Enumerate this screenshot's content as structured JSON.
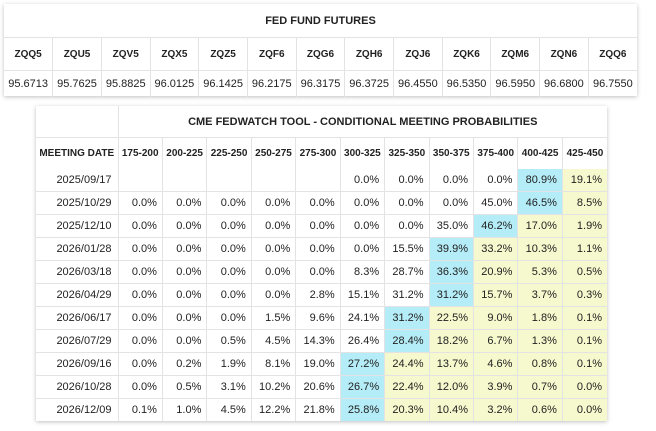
{
  "futures": {
    "title": "FED FUND FUTURES",
    "symbols": [
      "ZQQ5",
      "ZQU5",
      "ZQV5",
      "ZQX5",
      "ZQZ5",
      "ZQF6",
      "ZQG6",
      "ZQH6",
      "ZQJ6",
      "ZQK6",
      "ZQM6",
      "ZQN6",
      "ZQQ6"
    ],
    "prices": [
      "95.6713",
      "95.7625",
      "95.8825",
      "96.0125",
      "96.1425",
      "96.2175",
      "96.3175",
      "96.3725",
      "96.4550",
      "96.5350",
      "96.5950",
      "96.6800",
      "96.7550"
    ]
  },
  "fedwatch": {
    "title": "CME FEDWATCH TOOL - CONDITIONAL MEETING PROBABILITIES",
    "date_header": "MEETING DATE",
    "ranges": [
      "175-200",
      "200-225",
      "225-250",
      "250-275",
      "275-300",
      "300-325",
      "325-350",
      "350-375",
      "375-400",
      "400-425",
      "425-450"
    ],
    "colors": {
      "highest": "#b4ecf7",
      "upper": "#f6f8cd",
      "border": "#e3e3e3"
    },
    "rows": [
      {
        "date": "2025/09/17",
        "cells": [
          "",
          "",
          "",
          "",
          "",
          "0.0%",
          "0.0%",
          "0.0%",
          "0.0%",
          "80.9%",
          "19.1%"
        ],
        "hl": [
          "",
          "",
          "",
          "",
          "",
          "",
          "",
          "",
          "",
          "c",
          "y"
        ]
      },
      {
        "date": "2025/10/29",
        "cells": [
          "0.0%",
          "0.0%",
          "0.0%",
          "0.0%",
          "0.0%",
          "0.0%",
          "0.0%",
          "0.0%",
          "45.0%",
          "46.5%",
          "8.5%"
        ],
        "hl": [
          "",
          "",
          "",
          "",
          "",
          "",
          "",
          "",
          "",
          "c",
          "y"
        ]
      },
      {
        "date": "2025/12/10",
        "cells": [
          "0.0%",
          "0.0%",
          "0.0%",
          "0.0%",
          "0.0%",
          "0.0%",
          "0.0%",
          "35.0%",
          "46.2%",
          "17.0%",
          "1.9%"
        ],
        "hl": [
          "",
          "",
          "",
          "",
          "",
          "",
          "",
          "",
          "c",
          "y",
          "y"
        ]
      },
      {
        "date": "2026/01/28",
        "cells": [
          "0.0%",
          "0.0%",
          "0.0%",
          "0.0%",
          "0.0%",
          "0.0%",
          "15.5%",
          "39.9%",
          "33.2%",
          "10.3%",
          "1.1%"
        ],
        "hl": [
          "",
          "",
          "",
          "",
          "",
          "",
          "",
          "c",
          "y",
          "y",
          "y"
        ]
      },
      {
        "date": "2026/03/18",
        "cells": [
          "0.0%",
          "0.0%",
          "0.0%",
          "0.0%",
          "0.0%",
          "8.3%",
          "28.7%",
          "36.3%",
          "20.9%",
          "5.3%",
          "0.5%"
        ],
        "hl": [
          "",
          "",
          "",
          "",
          "",
          "",
          "",
          "c",
          "y",
          "y",
          "y"
        ]
      },
      {
        "date": "2026/04/29",
        "cells": [
          "0.0%",
          "0.0%",
          "0.0%",
          "0.0%",
          "2.8%",
          "15.1%",
          "31.2%",
          "31.2%",
          "15.7%",
          "3.7%",
          "0.3%"
        ],
        "hl": [
          "",
          "",
          "",
          "",
          "",
          "",
          "",
          "c",
          "y",
          "y",
          "y"
        ]
      },
      {
        "date": "2026/06/17",
        "cells": [
          "0.0%",
          "0.0%",
          "0.0%",
          "1.5%",
          "9.6%",
          "24.1%",
          "31.2%",
          "22.5%",
          "9.0%",
          "1.8%",
          "0.1%"
        ],
        "hl": [
          "",
          "",
          "",
          "",
          "",
          "",
          "c",
          "y",
          "y",
          "y",
          "y"
        ]
      },
      {
        "date": "2026/07/29",
        "cells": [
          "0.0%",
          "0.0%",
          "0.5%",
          "4.5%",
          "14.3%",
          "26.4%",
          "28.4%",
          "18.2%",
          "6.7%",
          "1.3%",
          "0.1%"
        ],
        "hl": [
          "",
          "",
          "",
          "",
          "",
          "",
          "c",
          "y",
          "y",
          "y",
          "y"
        ]
      },
      {
        "date": "2026/09/16",
        "cells": [
          "0.0%",
          "0.2%",
          "1.9%",
          "8.1%",
          "19.0%",
          "27.2%",
          "24.4%",
          "13.7%",
          "4.6%",
          "0.8%",
          "0.1%"
        ],
        "hl": [
          "",
          "",
          "",
          "",
          "",
          "c",
          "y",
          "y",
          "y",
          "y",
          "y"
        ]
      },
      {
        "date": "2026/10/28",
        "cells": [
          "0.0%",
          "0.5%",
          "3.1%",
          "10.2%",
          "20.6%",
          "26.7%",
          "22.4%",
          "12.0%",
          "3.9%",
          "0.7%",
          "0.0%"
        ],
        "hl": [
          "",
          "",
          "",
          "",
          "",
          "c",
          "y",
          "y",
          "y",
          "y",
          "y"
        ]
      },
      {
        "date": "2026/12/09",
        "cells": [
          "0.1%",
          "1.0%",
          "4.5%",
          "12.2%",
          "21.8%",
          "25.8%",
          "20.3%",
          "10.4%",
          "3.2%",
          "0.6%",
          "0.0%"
        ],
        "hl": [
          "",
          "",
          "",
          "",
          "",
          "c",
          "y",
          "y",
          "y",
          "y",
          "y"
        ]
      }
    ]
  }
}
